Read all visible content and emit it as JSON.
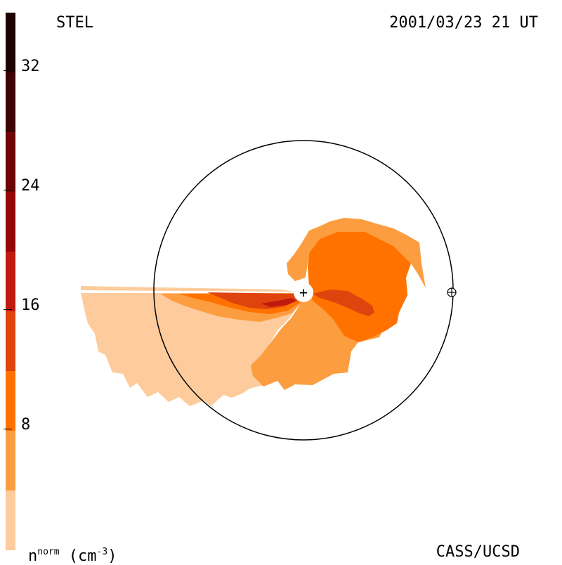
{
  "header": {
    "source": "STEL",
    "timestamp": "2001/03/23 21 UT"
  },
  "footer": {
    "unit_base": "n",
    "unit_sup": "norm",
    "unit_rest": " (cm",
    "unit_exp": "-3",
    "unit_close": ")",
    "credit": "CASS/UCSD"
  },
  "colorbar": {
    "ticks": [
      "32",
      "24",
      "16",
      "8"
    ],
    "colors": [
      "#fdcb9c",
      "#fc9d3f",
      "#ff7200",
      "#e0440e",
      "#c0190e",
      "#950707",
      "#6e0505",
      "#3c0404",
      "#1e0202"
    ]
  },
  "markers": {
    "sun_symbol": "+",
    "earth_symbol": "⊕"
  }
}
